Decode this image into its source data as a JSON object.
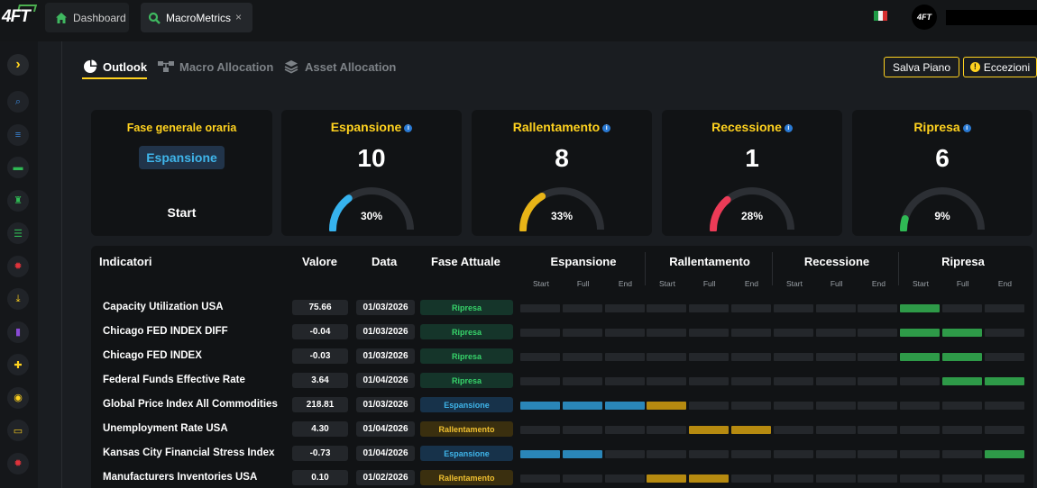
{
  "app": {
    "logo": "4FT"
  },
  "tabs": [
    {
      "label": "Dashboard",
      "icon": "home-icon"
    },
    {
      "label": "MacroMetrics",
      "icon": "search-icon",
      "close": "×"
    }
  ],
  "header": {
    "avatar": "4FT"
  },
  "subtabs": [
    {
      "label": "Outlook",
      "icon": "pie-chart-icon"
    },
    {
      "label": "Macro Allocation",
      "icon": "network-icon"
    },
    {
      "label": "Asset Allocation",
      "icon": "layers-icon"
    }
  ],
  "actions": {
    "save": "Salva Piano",
    "exceptions": "Eccezioni"
  },
  "overview": {
    "title": "Fase generale oraria",
    "phase": "Espansione",
    "sub": "Start"
  },
  "phases": [
    {
      "name": "Espansione",
      "count": "10",
      "pct": "30%",
      "fraction": 0.3,
      "color": "#36b3ee"
    },
    {
      "name": "Rallentamento",
      "count": "8",
      "pct": "33%",
      "fraction": 0.33,
      "color": "#e8b417"
    },
    {
      "name": "Recessione",
      "count": "1",
      "pct": "28%",
      "fraction": 0.28,
      "color": "#ec3b57"
    },
    {
      "name": "Ripresa",
      "count": "6",
      "pct": "9%",
      "fraction": 0.09,
      "color": "#2fb954"
    }
  ],
  "table": {
    "headers": {
      "indicator": "Indicatori",
      "value": "Valore",
      "date": "Data",
      "phase": "Fase Attuale"
    },
    "phase_columns": [
      "Espansione",
      "Rallentamento",
      "Recessione",
      "Ripresa"
    ],
    "sub_columns": [
      "Start",
      "Full",
      "End"
    ],
    "rows": [
      {
        "name": "Capacity Utilization USA",
        "value": "75.66",
        "date": "01/03/2026",
        "phase": "Ripresa",
        "active": [
          9
        ]
      },
      {
        "name": "Chicago FED INDEX DIFF",
        "value": "-0.04",
        "date": "01/03/2026",
        "phase": "Ripresa",
        "active": [
          9,
          10
        ]
      },
      {
        "name": "Chicago FED INDEX",
        "value": "-0.03",
        "date": "01/03/2026",
        "phase": "Ripresa",
        "active": [
          9,
          10
        ]
      },
      {
        "name": "Federal Funds Effective Rate",
        "value": "3.64",
        "date": "01/04/2026",
        "phase": "Ripresa",
        "active": [
          10,
          11
        ]
      },
      {
        "name": "Global Price Index All Commodities",
        "value": "218.81",
        "date": "01/03/2026",
        "phase": "Espansione",
        "active": [
          0,
          1,
          2,
          3
        ]
      },
      {
        "name": "Unemployment Rate USA",
        "value": "4.30",
        "date": "01/04/2026",
        "phase": "Rallentamento",
        "active": [
          4,
          5
        ]
      },
      {
        "name": "Kansas City Financial Stress Index",
        "value": "-0.73",
        "date": "01/04/2026",
        "phase": "Espansione",
        "active": [
          0,
          1,
          11
        ]
      },
      {
        "name": "Manufacturers Inventories USA",
        "value": "0.10",
        "date": "01/02/2026",
        "phase": "Rallentamento",
        "active": [
          3,
          4
        ]
      }
    ]
  },
  "colors": {
    "accent": "#ffd21f",
    "Espansione": "#2a86b8",
    "Rallentamento": "#b68a10",
    "Recessione": "#c0324a",
    "Ripresa": "#2e9a48",
    "empty_cell": "#24272b"
  },
  "pill_styles": {
    "Ripresa": {
      "bg": "#15352a",
      "fg": "#37d36a"
    },
    "Espansione": {
      "bg": "#17324a",
      "fg": "#3fb5ea"
    },
    "Rallentamento": {
      "bg": "#3a2f0f",
      "fg": "#f0c030"
    }
  },
  "sidebar": {
    "icons": [
      "search-icon",
      "list-icon",
      "wallet-icon",
      "chess-rook-icon",
      "checklist-icon",
      "gear-icon",
      "download-icon",
      "document-icon",
      "puzzle-icon",
      "headset-icon",
      "card-icon",
      "settings-icon"
    ]
  }
}
